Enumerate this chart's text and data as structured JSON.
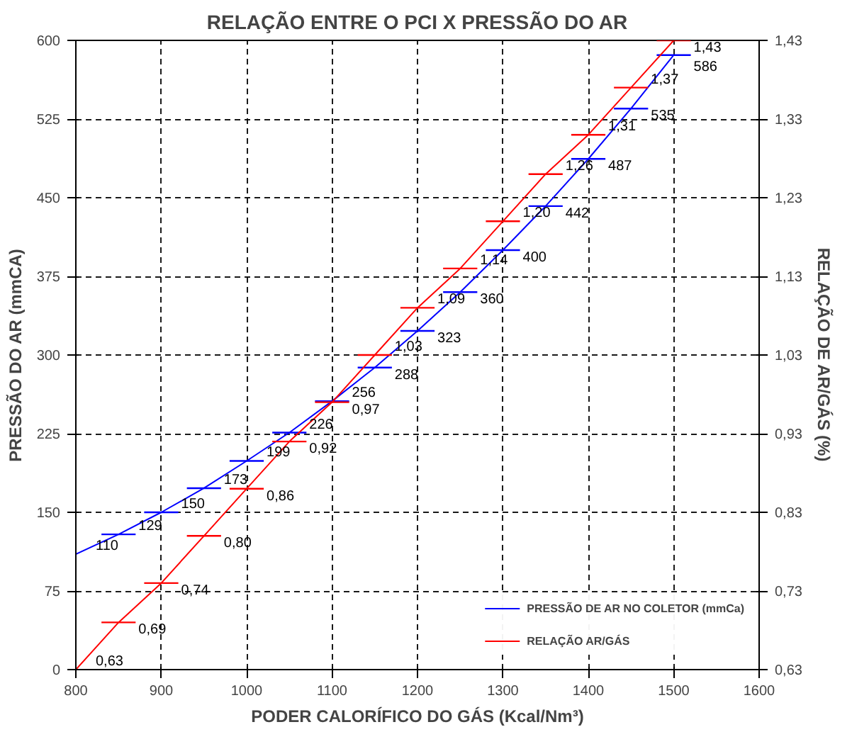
{
  "chart_data": {
    "type": "line",
    "title": "RELAÇÃO ENTRE O PCI X PRESSÃO DO AR",
    "xlabel": "PODER CALORÍFICO DO GÁS (Kcal/Nm³)",
    "ylabel": "PRESSÃO DO AR (mmCA)",
    "y2label": "RELAÇÃO DE AR/GÁS (%)",
    "x": [
      800,
      850,
      900,
      950,
      1000,
      1050,
      1100,
      1150,
      1200,
      1250,
      1300,
      1350,
      1400,
      1450,
      1500
    ],
    "series": [
      {
        "name": "PRESSÃO DE AR NO COLETOR (mmCa)",
        "color": "#0000ff",
        "values": [
          110,
          129,
          150,
          173,
          199,
          226,
          256,
          288,
          323,
          360,
          400,
          442,
          487,
          535,
          586
        ],
        "xerrors": [
          null,
          20,
          20,
          20,
          20,
          20,
          20,
          20,
          20,
          20,
          20,
          20,
          20,
          20,
          20
        ],
        "value_labels": [
          "110",
          "129",
          "150",
          "173",
          "199",
          "226",
          "256",
          "288",
          "323",
          "360",
          "400",
          "442",
          "487",
          "535",
          "586"
        ]
      },
      {
        "name": "RELAÇÃO AR/GÁS",
        "color": "#ff0000",
        "values": [
          0.63,
          0.69,
          0.74,
          0.8,
          0.86,
          0.92,
          0.97,
          1.03,
          1.09,
          1.14,
          1.2,
          1.26,
          1.31,
          1.37,
          1.43
        ],
        "axis": "y2",
        "xerrors": [
          null,
          20,
          20,
          20,
          20,
          20,
          20,
          20,
          20,
          20,
          20,
          20,
          20,
          20,
          20
        ],
        "value_labels": [
          "0,63",
          "0,69",
          "0,74",
          "0,80",
          "0,86",
          "0,92",
          "0,97",
          "1,03",
          "1,09",
          "1,14",
          "1,20",
          "1,26",
          "1,31",
          "1,37",
          "1,43"
        ]
      }
    ],
    "xlim": [
      800,
      1600
    ],
    "xticks": [
      800,
      900,
      1000,
      1100,
      1200,
      1300,
      1400,
      1500,
      1600
    ],
    "ylim": [
      0,
      600
    ],
    "yticks": [
      0,
      75,
      150,
      225,
      300,
      375,
      450,
      525,
      600
    ],
    "y2lim": [
      0.63,
      1.43
    ],
    "y2ticks": [
      {
        "value": 0.63,
        "label": "0,63"
      },
      {
        "value": 0.73,
        "label": "0,73"
      },
      {
        "value": 0.83,
        "label": "0,83"
      },
      {
        "value": 0.93,
        "label": "0,93"
      },
      {
        "value": 1.03,
        "label": "1,03"
      },
      {
        "value": 1.13,
        "label": "1,13"
      },
      {
        "value": 1.23,
        "label": "1,23"
      },
      {
        "value": 1.33,
        "label": "1,33"
      },
      {
        "value": 1.43,
        "label": "1,43"
      }
    ],
    "grid": true,
    "legend": "bottom right",
    "line_style": "solid"
  }
}
